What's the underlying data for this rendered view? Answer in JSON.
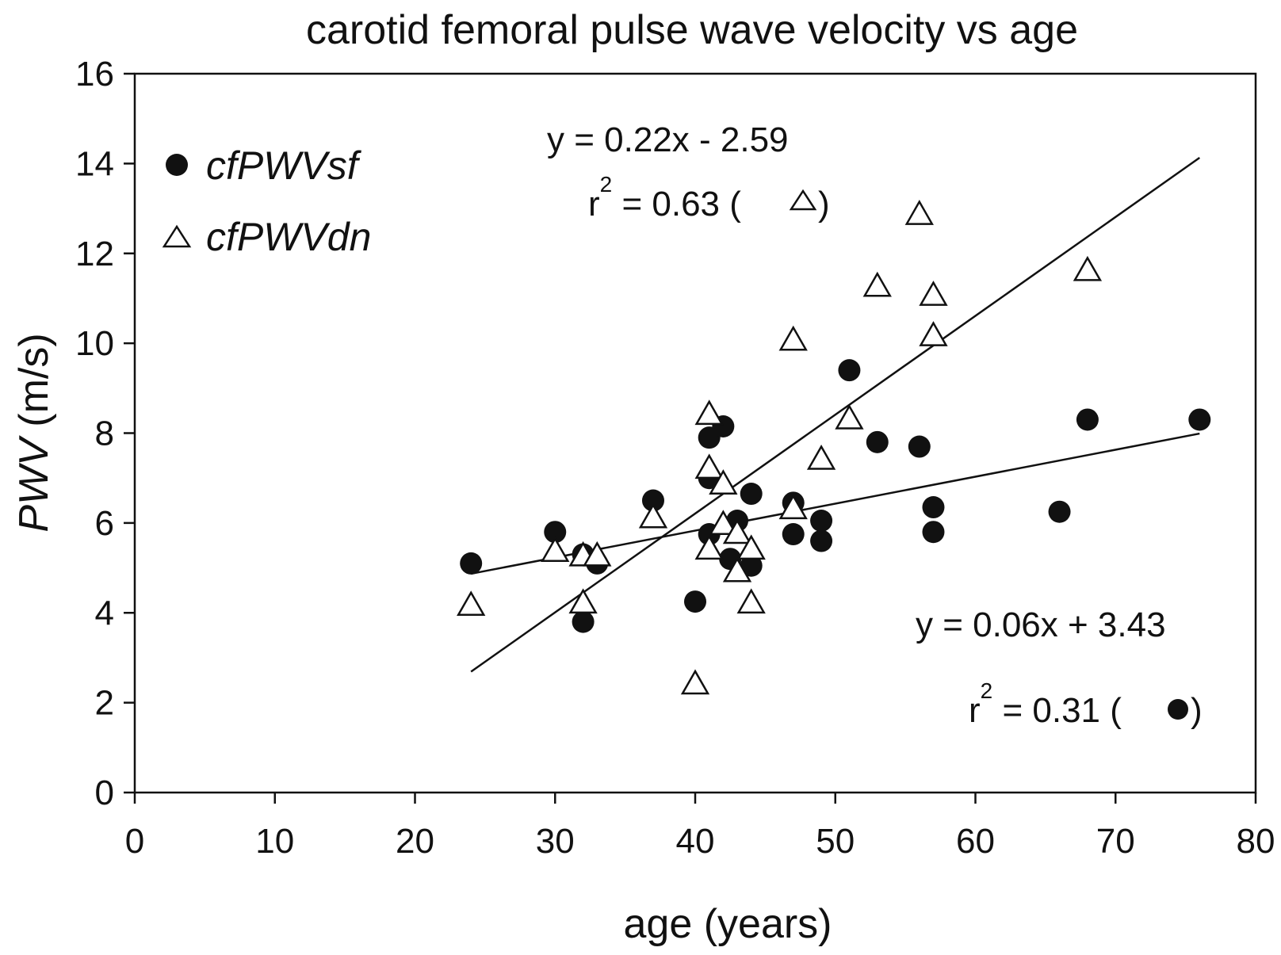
{
  "chart_data": {
    "type": "scatter",
    "title": "carotid femoral pulse wave velocity vs age",
    "xlabel": "age (years)",
    "ylabel_italic": "PWV",
    "ylabel_rest": " (m/s)",
    "xlim": [
      0,
      80
    ],
    "ylim": [
      0,
      16
    ],
    "xticks": [
      0,
      10,
      20,
      30,
      40,
      50,
      60,
      70,
      80
    ],
    "yticks": [
      0,
      2,
      4,
      6,
      8,
      10,
      12,
      14,
      16
    ],
    "grid": false,
    "legend_position": "top-left",
    "series": [
      {
        "name": "cfPWVsf",
        "marker": "filled-circle",
        "color": "#111111",
        "points": [
          [
            24,
            5.1
          ],
          [
            30,
            5.8
          ],
          [
            32,
            5.3
          ],
          [
            32,
            3.8
          ],
          [
            33,
            5.1
          ],
          [
            37,
            6.5
          ],
          [
            40,
            4.25
          ],
          [
            41,
            7.9
          ],
          [
            41,
            7.0
          ],
          [
            41,
            5.75
          ],
          [
            42,
            8.15
          ],
          [
            42.5,
            5.2
          ],
          [
            43,
            6.05
          ],
          [
            44,
            6.65
          ],
          [
            44,
            5.05
          ],
          [
            47,
            6.45
          ],
          [
            47,
            5.75
          ],
          [
            49,
            6.05
          ],
          [
            49,
            5.6
          ],
          [
            51,
            9.4
          ],
          [
            53,
            7.8
          ],
          [
            56,
            7.7
          ],
          [
            57,
            6.35
          ],
          [
            57,
            5.8
          ],
          [
            66,
            6.25
          ],
          [
            68,
            8.3
          ],
          [
            76,
            8.3
          ]
        ]
      },
      {
        "name": "cfPWVdn",
        "marker": "open-triangle",
        "color": "#111111",
        "points": [
          [
            24,
            4.15
          ],
          [
            30,
            5.35
          ],
          [
            32,
            5.25
          ],
          [
            32,
            4.2
          ],
          [
            33,
            5.25
          ],
          [
            37,
            6.1
          ],
          [
            40,
            2.4
          ],
          [
            41,
            8.4
          ],
          [
            41,
            7.2
          ],
          [
            41,
            5.4
          ],
          [
            42,
            6.85
          ],
          [
            42,
            5.95
          ],
          [
            43,
            5.75
          ],
          [
            43,
            4.9
          ],
          [
            44,
            5.4
          ],
          [
            44,
            4.2
          ],
          [
            47,
            10.05
          ],
          [
            47,
            6.3
          ],
          [
            49,
            7.4
          ],
          [
            51,
            8.3
          ],
          [
            53,
            11.25
          ],
          [
            56,
            12.85
          ],
          [
            57,
            11.05
          ],
          [
            57,
            10.15
          ],
          [
            68,
            11.6
          ]
        ]
      }
    ],
    "fits": [
      {
        "series": "cfPWVdn",
        "slope": 0.22,
        "intercept": -2.59,
        "x_range": [
          24,
          76
        ],
        "equation": "y = 0.22x - 2.59",
        "r2_text": "r",
        "r2_sup": "2",
        "r2_value": " = 0.63 (",
        "r2_close": ")"
      },
      {
        "series": "cfPWVsf",
        "slope": 0.06,
        "intercept": 3.43,
        "x_range": [
          24,
          76
        ],
        "equation": "y = 0.06x + 3.43",
        "r2_text": "r",
        "r2_sup": "2",
        "r2_value": " = 0.31 (",
        "r2_close": ")"
      }
    ]
  }
}
